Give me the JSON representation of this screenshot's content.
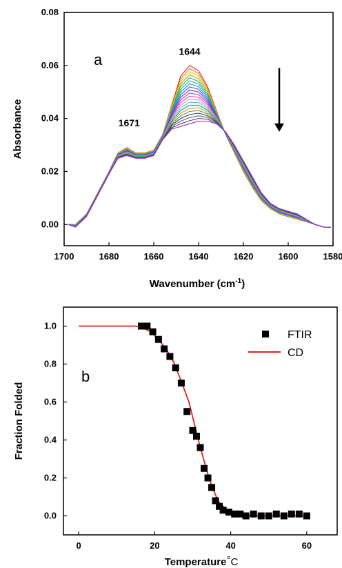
{
  "chart_data": [
    {
      "type": "line",
      "panel_label": "a",
      "xlabel": "Wavenumber (cm",
      "xlabel_sup": "-1",
      "xlabel_close": ")",
      "ylabel": "Absorbance",
      "xlim": [
        1700,
        1580
      ],
      "ylim": [
        -0.008,
        0.08
      ],
      "x_reversed": true,
      "xticks": [
        "1700",
        "1680",
        "1660",
        "1640",
        "1620",
        "1600",
        "1580"
      ],
      "yticks": [
        "0.00",
        "0.02",
        "0.04",
        "0.06",
        "0.08"
      ],
      "annotations": [
        {
          "text": "1644",
          "x": 1644,
          "y": 0.064
        },
        {
          "text": "1671",
          "x": 1671,
          "y": 0.037
        }
      ],
      "arrow": {
        "x": 1604,
        "y_start": 0.059,
        "y_end": 0.035,
        "direction": "down"
      },
      "n_series": 20,
      "x": [
        1698,
        1695,
        1690,
        1685,
        1680,
        1676,
        1672,
        1668,
        1664,
        1660,
        1656,
        1652,
        1648,
        1644,
        1640,
        1636,
        1632,
        1628,
        1624,
        1620,
        1616,
        1612,
        1608,
        1604,
        1600,
        1596,
        1592,
        1588,
        1584,
        1581
      ],
      "first_series": [
        0.0,
        0.0,
        0.004,
        0.012,
        0.02,
        0.027,
        0.029,
        0.027,
        0.027,
        0.028,
        0.034,
        0.045,
        0.056,
        0.06,
        0.058,
        0.052,
        0.043,
        0.034,
        0.027,
        0.02,
        0.014,
        0.009,
        0.006,
        0.004,
        0.003,
        0.002,
        0.001,
        0.0,
        -0.001,
        -0.001
      ],
      "last_series": [
        0.0,
        -0.001,
        0.003,
        0.011,
        0.019,
        0.025,
        0.026,
        0.025,
        0.025,
        0.026,
        0.032,
        0.036,
        0.037,
        0.038,
        0.039,
        0.039,
        0.038,
        0.035,
        0.03,
        0.024,
        0.018,
        0.012,
        0.008,
        0.006,
        0.005,
        0.004,
        0.002,
        0.0,
        -0.001,
        -0.001
      ],
      "series_colors": [
        "#e3262d",
        "#f07a1a",
        "#e6c619",
        "#8fbf1f",
        "#2aa84a",
        "#1fb3a6",
        "#1f8fd6",
        "#3a5ad9",
        "#6a3fd0",
        "#b13fc4",
        "#e04da3",
        "#f28fa0",
        "#3cc8e8",
        "#0f9d8a",
        "#c9a227",
        "#7a8a2a",
        "#1a3a8f",
        "#556b2f",
        "#5b3a8a",
        "#8a2be2"
      ]
    },
    {
      "type": "line",
      "panel_label": "b",
      "xlabel": "Temperature",
      "xlabel_unit_sup": "°",
      "xlabel_unit": "C",
      "ylabel": "Fraction Folded",
      "xlim": [
        -4,
        68
      ],
      "ylim": [
        -0.1,
        1.1
      ],
      "xticks": [
        "0",
        "20",
        "40",
        "60"
      ],
      "yticks": [
        "0.0",
        "0.2",
        "0.4",
        "0.6",
        "0.8",
        "1.0"
      ],
      "legend_position": "top-right",
      "series": [
        {
          "name": "FTIR",
          "marker": "square",
          "color": "#000000",
          "x": [
            16.5,
            18,
            19.5,
            21,
            22.5,
            24,
            25.5,
            27,
            28.5,
            30,
            31,
            32,
            33,
            34,
            35,
            36,
            37,
            38,
            39.5,
            41,
            42.5,
            44,
            46,
            48,
            50,
            52,
            54,
            56,
            58,
            60
          ],
          "y": [
            1.0,
            1.0,
            0.97,
            0.93,
            0.88,
            0.84,
            0.78,
            0.7,
            0.55,
            0.45,
            0.42,
            0.36,
            0.25,
            0.2,
            0.15,
            0.08,
            0.05,
            0.03,
            0.02,
            0.01,
            0.01,
            0.0,
            0.01,
            0.0,
            0.0,
            0.01,
            0.0,
            0.01,
            0.01,
            0.0
          ]
        },
        {
          "name": "CD",
          "color": "#e02020",
          "x": [
            0,
            4,
            8,
            12,
            15,
            17,
            19,
            21,
            23,
            25,
            27,
            29,
            30,
            31,
            32,
            33,
            34,
            35,
            36,
            37,
            38,
            40,
            42,
            45,
            48,
            51,
            54,
            57,
            60
          ],
          "y": [
            1.0,
            1.0,
            1.0,
            1.0,
            1.0,
            0.99,
            0.97,
            0.93,
            0.88,
            0.81,
            0.71,
            0.6,
            0.52,
            0.44,
            0.36,
            0.29,
            0.22,
            0.16,
            0.11,
            0.07,
            0.05,
            0.02,
            0.01,
            0.0,
            0.0,
            0.0,
            0.0,
            0.0,
            0.0
          ]
        }
      ]
    }
  ]
}
